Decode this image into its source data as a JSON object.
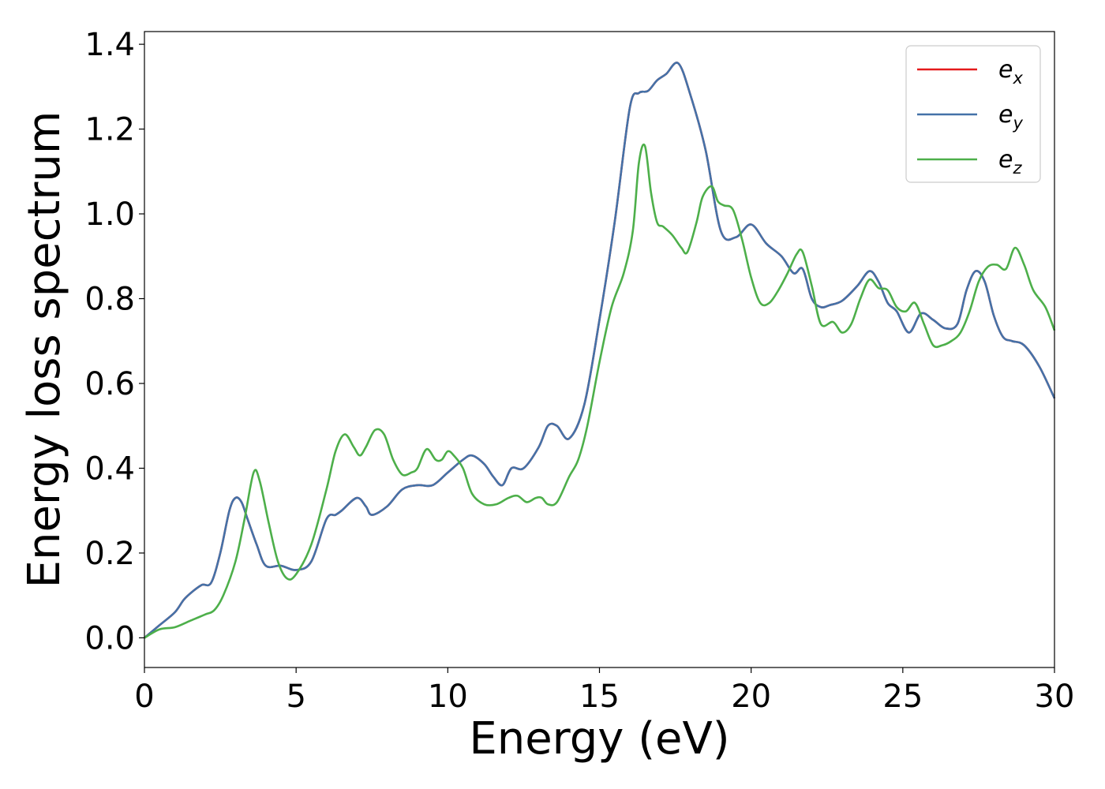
{
  "chart_data": {
    "type": "line",
    "title": "",
    "xlabel": "Energy (eV)",
    "ylabel": "Energy loss spectrum",
    "xlim": [
      0,
      30
    ],
    "ylim": [
      -0.07,
      1.43
    ],
    "xticks": [
      0,
      5,
      10,
      15,
      20,
      25,
      30
    ],
    "xtick_labels": [
      "0",
      "5",
      "10",
      "15",
      "20",
      "25",
      "30"
    ],
    "yticks": [
      0.0,
      0.2,
      0.4,
      0.6,
      0.8,
      1.0,
      1.2,
      1.4
    ],
    "ytick_labels": [
      "0.0",
      "0.2",
      "0.4",
      "0.6",
      "0.8",
      "1.0",
      "1.2",
      "1.4"
    ],
    "grid": false,
    "legend_position": "top-right",
    "series": [
      {
        "name": "e_x",
        "label_base": "e",
        "label_sub": "x",
        "color": "#e41a1c",
        "x": [
          0,
          0.5,
          1,
          1.3,
          1.6,
          1.9,
          2.2,
          2.5,
          2.8,
          3.0,
          3.2,
          3.4,
          3.7,
          4.0,
          4.5,
          5.0,
          5.5,
          6.0,
          6.3,
          6.5,
          7.0,
          7.3,
          7.5,
          8.0,
          8.5,
          9.0,
          9.5,
          10.0,
          10.5,
          10.8,
          11.2,
          11.5,
          11.8,
          12.1,
          12.5,
          13.0,
          13.3,
          13.6,
          14.0,
          14.5,
          15.0,
          15.5,
          16.0,
          16.3,
          16.6,
          16.9,
          17.2,
          17.6,
          18.0,
          18.5,
          19.0,
          19.5,
          20.0,
          20.5,
          21.0,
          21.4,
          21.7,
          22.0,
          22.3,
          22.6,
          23.0,
          23.5,
          23.9,
          24.2,
          24.5,
          24.8,
          25.2,
          25.6,
          26.0,
          26.4,
          26.8,
          27.1,
          27.4,
          27.7,
          28.0,
          28.3,
          28.6,
          29.0,
          29.5,
          30.0
        ],
        "y": [
          0.0,
          0.03,
          0.06,
          0.09,
          0.11,
          0.125,
          0.13,
          0.2,
          0.3,
          0.33,
          0.32,
          0.28,
          0.22,
          0.17,
          0.17,
          0.16,
          0.18,
          0.28,
          0.29,
          0.3,
          0.33,
          0.31,
          0.29,
          0.31,
          0.35,
          0.36,
          0.36,
          0.39,
          0.42,
          0.43,
          0.41,
          0.38,
          0.36,
          0.4,
          0.4,
          0.45,
          0.5,
          0.5,
          0.47,
          0.55,
          0.75,
          0.98,
          1.25,
          1.285,
          1.29,
          1.315,
          1.33,
          1.355,
          1.28,
          1.15,
          0.96,
          0.945,
          0.975,
          0.93,
          0.9,
          0.86,
          0.87,
          0.8,
          0.78,
          0.785,
          0.795,
          0.83,
          0.865,
          0.84,
          0.79,
          0.77,
          0.72,
          0.765,
          0.75,
          0.73,
          0.74,
          0.82,
          0.865,
          0.84,
          0.76,
          0.71,
          0.7,
          0.69,
          0.64,
          0.565
        ]
      },
      {
        "name": "e_y",
        "label_base": "e",
        "label_sub": "y",
        "color": "#4472a8",
        "x": [
          0,
          0.5,
          1,
          1.3,
          1.6,
          1.9,
          2.2,
          2.5,
          2.8,
          3.0,
          3.2,
          3.4,
          3.7,
          4.0,
          4.5,
          5.0,
          5.5,
          6.0,
          6.3,
          6.5,
          7.0,
          7.3,
          7.5,
          8.0,
          8.5,
          9.0,
          9.5,
          10.0,
          10.5,
          10.8,
          11.2,
          11.5,
          11.8,
          12.1,
          12.5,
          13.0,
          13.3,
          13.6,
          14.0,
          14.5,
          15.0,
          15.5,
          16.0,
          16.3,
          16.6,
          16.9,
          17.2,
          17.6,
          18.0,
          18.5,
          19.0,
          19.5,
          20.0,
          20.5,
          21.0,
          21.4,
          21.7,
          22.0,
          22.3,
          22.6,
          23.0,
          23.5,
          23.9,
          24.2,
          24.5,
          24.8,
          25.2,
          25.6,
          26.0,
          26.4,
          26.8,
          27.1,
          27.4,
          27.7,
          28.0,
          28.3,
          28.6,
          29.0,
          29.5,
          30.0
        ],
        "y": [
          0.0,
          0.03,
          0.06,
          0.09,
          0.11,
          0.125,
          0.13,
          0.2,
          0.3,
          0.33,
          0.32,
          0.28,
          0.22,
          0.17,
          0.17,
          0.16,
          0.18,
          0.28,
          0.29,
          0.3,
          0.33,
          0.31,
          0.29,
          0.31,
          0.35,
          0.36,
          0.36,
          0.39,
          0.42,
          0.43,
          0.41,
          0.38,
          0.36,
          0.4,
          0.4,
          0.45,
          0.5,
          0.5,
          0.47,
          0.55,
          0.75,
          0.98,
          1.25,
          1.285,
          1.29,
          1.315,
          1.33,
          1.355,
          1.28,
          1.15,
          0.96,
          0.945,
          0.975,
          0.93,
          0.9,
          0.86,
          0.87,
          0.8,
          0.78,
          0.785,
          0.795,
          0.83,
          0.865,
          0.84,
          0.79,
          0.77,
          0.72,
          0.765,
          0.75,
          0.73,
          0.74,
          0.82,
          0.865,
          0.84,
          0.76,
          0.71,
          0.7,
          0.69,
          0.64,
          0.565
        ]
      },
      {
        "name": "e_z",
        "label_base": "e",
        "label_sub": "z",
        "color": "#4daf4a",
        "x": [
          0,
          0.5,
          1,
          1.5,
          2.0,
          2.3,
          2.6,
          3.0,
          3.3,
          3.6,
          3.8,
          4.1,
          4.4,
          4.7,
          5.0,
          5.5,
          6.0,
          6.3,
          6.6,
          6.9,
          7.1,
          7.3,
          7.6,
          7.9,
          8.2,
          8.5,
          8.8,
          9.0,
          9.3,
          9.6,
          9.8,
          10.0,
          10.2,
          10.5,
          10.8,
          11.2,
          11.6,
          12.0,
          12.3,
          12.6,
          12.9,
          13.1,
          13.3,
          13.6,
          14.0,
          14.3,
          14.6,
          15.0,
          15.4,
          15.8,
          16.1,
          16.3,
          16.5,
          16.7,
          16.9,
          17.1,
          17.4,
          17.7,
          17.9,
          18.2,
          18.4,
          18.7,
          18.9,
          19.1,
          19.4,
          19.7,
          20.0,
          20.3,
          20.6,
          20.9,
          21.2,
          21.5,
          21.7,
          22.0,
          22.3,
          22.7,
          23.0,
          23.3,
          23.6,
          23.9,
          24.2,
          24.5,
          24.8,
          25.1,
          25.4,
          25.7,
          26.0,
          26.3,
          26.6,
          26.9,
          27.2,
          27.5,
          27.8,
          28.1,
          28.4,
          28.7,
          29.0,
          29.3,
          29.7,
          30.0
        ],
        "y": [
          0.0,
          0.02,
          0.025,
          0.04,
          0.055,
          0.065,
          0.1,
          0.18,
          0.28,
          0.39,
          0.37,
          0.27,
          0.18,
          0.14,
          0.15,
          0.22,
          0.35,
          0.44,
          0.48,
          0.45,
          0.43,
          0.45,
          0.49,
          0.48,
          0.42,
          0.385,
          0.39,
          0.4,
          0.445,
          0.42,
          0.42,
          0.44,
          0.43,
          0.4,
          0.34,
          0.315,
          0.315,
          0.33,
          0.335,
          0.32,
          0.33,
          0.33,
          0.315,
          0.32,
          0.38,
          0.42,
          0.5,
          0.65,
          0.78,
          0.86,
          0.96,
          1.12,
          1.16,
          1.05,
          0.98,
          0.97,
          0.95,
          0.92,
          0.91,
          0.98,
          1.04,
          1.065,
          1.03,
          1.02,
          1.01,
          0.94,
          0.85,
          0.79,
          0.79,
          0.82,
          0.86,
          0.905,
          0.91,
          0.83,
          0.74,
          0.745,
          0.72,
          0.74,
          0.8,
          0.845,
          0.825,
          0.82,
          0.78,
          0.77,
          0.79,
          0.74,
          0.69,
          0.69,
          0.7,
          0.72,
          0.77,
          0.84,
          0.875,
          0.88,
          0.87,
          0.92,
          0.88,
          0.82,
          0.78,
          0.725
        ]
      }
    ]
  }
}
